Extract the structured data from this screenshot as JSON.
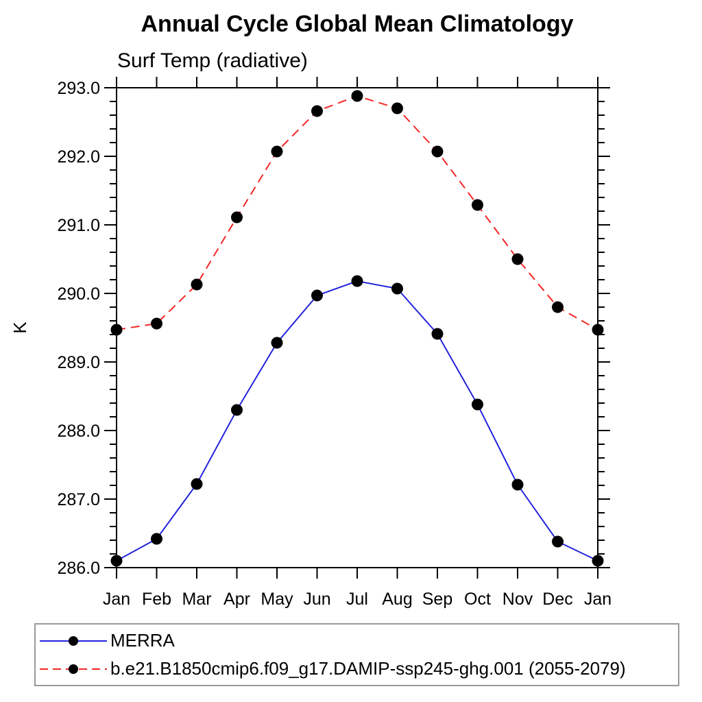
{
  "chart_data": {
    "type": "line",
    "title": "Annual Cycle Global Mean Climatology",
    "subtitle": "Surf Temp (radiative)",
    "xlabel": "",
    "ylabel": "K",
    "ylim": [
      286.0,
      293.0
    ],
    "ytick_step": 1.0,
    "ytick_minor_step": 0.2,
    "ytick_labels": [
      "286.0",
      "287.0",
      "288.0",
      "289.0",
      "290.0",
      "291.0",
      "292.0",
      "293.0"
    ],
    "categories": [
      "Jan",
      "Feb",
      "Mar",
      "Apr",
      "May",
      "Jun",
      "Jul",
      "Aug",
      "Sep",
      "Oct",
      "Nov",
      "Dec",
      "Jan"
    ],
    "grid": false,
    "legend_position": "bottom",
    "frame_color": "#000000",
    "marker_radius_px": 8.5,
    "series": [
      {
        "name": "MERRA",
        "color": "#2222dd",
        "style": "solid",
        "marker": "filled-circle",
        "marker_color": "#000000",
        "values": [
          286.1,
          286.42,
          287.22,
          288.3,
          289.28,
          289.97,
          290.18,
          290.07,
          289.41,
          288.38,
          287.21,
          286.38,
          286.1
        ]
      },
      {
        "name": "b.e21.B1850cmip6.f09_g17.DAMIP-ssp245-ghg.001 (2055-2079)",
        "color": "#f42525",
        "style": "dashed",
        "marker": "filled-circle",
        "marker_color": "#000000",
        "values": [
          289.47,
          289.56,
          290.13,
          291.11,
          292.07,
          292.66,
          292.88,
          292.7,
          292.07,
          291.29,
          290.5,
          289.8,
          289.47
        ]
      }
    ]
  }
}
